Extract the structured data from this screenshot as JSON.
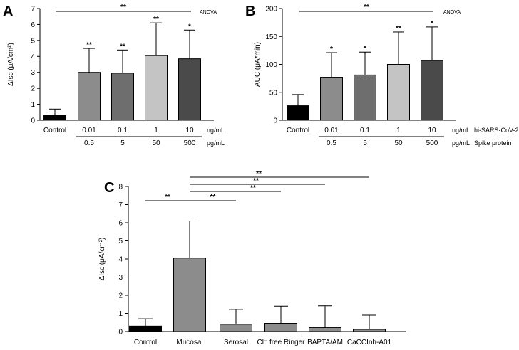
{
  "chart_data": [
    {
      "panel": "A",
      "type": "bar",
      "categories": [
        "Control",
        "0.01",
        "0.1",
        "1",
        "10"
      ],
      "values": [
        0.3,
        3.0,
        2.95,
        4.05,
        3.85
      ],
      "errors": [
        0.4,
        1.5,
        1.45,
        2.05,
        1.8
      ],
      "colors": [
        "#000000",
        "#8c8c8c",
        "#6e6e6e",
        "#c4c4c4",
        "#4a4a4a"
      ],
      "bar_significance": [
        "",
        "**",
        "**",
        "**",
        "*"
      ],
      "ylabel": "ΔIsc (μA/cm²)",
      "ylim": [
        0,
        7
      ],
      "yticks": [
        0,
        1,
        2,
        3,
        4,
        5,
        6,
        7
      ],
      "top_bracket": {
        "label": "**",
        "test": "ANOVA"
      },
      "row1": {
        "values": [
          "0.01",
          "0.1",
          "1",
          "10"
        ],
        "unit": "ng/mL"
      },
      "row2": {
        "values": [
          "0.5",
          "5",
          "50",
          "500"
        ],
        "unit": "pg/mL"
      }
    },
    {
      "panel": "B",
      "type": "bar",
      "categories": [
        "Control",
        "0.01",
        "0.1",
        "1",
        "10"
      ],
      "values": [
        26,
        77,
        81,
        100,
        107
      ],
      "errors": [
        20,
        44,
        41,
        58,
        60
      ],
      "colors": [
        "#000000",
        "#8c8c8c",
        "#6e6e6e",
        "#c4c4c4",
        "#4a4a4a"
      ],
      "bar_significance": [
        "",
        "*",
        "*",
        "**",
        "*"
      ],
      "ylabel": "AUC (μA*min)",
      "ylim": [
        0,
        200
      ],
      "yticks": [
        0,
        50,
        100,
        150,
        200
      ],
      "top_bracket": {
        "label": "**",
        "test": "ANOVA"
      },
      "row1": {
        "values": [
          "0.01",
          "0.1",
          "1",
          "10"
        ],
        "unit": "ng/mL",
        "name": "hi-SARS-CoV-2"
      },
      "row2": {
        "values": [
          "0.5",
          "5",
          "50",
          "500"
        ],
        "unit": "pg/mL",
        "name": "Spike protein"
      }
    },
    {
      "panel": "C",
      "type": "bar",
      "categories": [
        "Control",
        "Mucosal",
        "Serosal",
        "Cl⁻ free Ringer",
        "BAPTA/AM",
        "CaCCInh-A01"
      ],
      "values": [
        0.3,
        4.05,
        0.4,
        0.45,
        0.22,
        0.12
      ],
      "errors": [
        0.4,
        2.05,
        0.82,
        0.95,
        1.2,
        0.78
      ],
      "colors": [
        "#000000",
        "#8c8c8c",
        "#8c8c8c",
        "#8c8c8c",
        "#8c8c8c",
        "#8c8c8c"
      ],
      "ylabel": "ΔIsc (μA/cm²)",
      "ylim": [
        0,
        8
      ],
      "yticks": [
        0,
        1,
        2,
        3,
        4,
        5,
        6,
        7,
        8
      ],
      "comparisons": [
        {
          "from": 0,
          "to": 1,
          "label": "**"
        },
        {
          "from": 1,
          "to": 2,
          "label": "**"
        },
        {
          "from": 1,
          "to": 3,
          "label": "**"
        },
        {
          "from": 1,
          "to": 4,
          "label": "**"
        },
        {
          "from": 1,
          "to": 5,
          "label": "**"
        }
      ]
    }
  ]
}
